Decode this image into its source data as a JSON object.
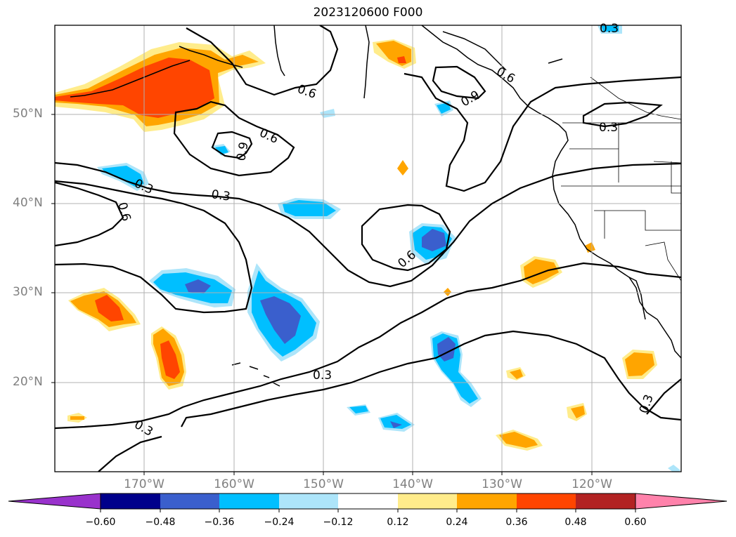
{
  "title": "2023120600 F000",
  "map": {
    "lat_labels": [
      "50°N",
      "40°N",
      "30°N",
      "20°N"
    ],
    "lon_labels": [
      "170°W",
      "160°W",
      "150°W",
      "140°W",
      "130°W",
      "120°W"
    ],
    "contour_labels": [
      "0.6",
      "0.6",
      "0.9",
      "0.6",
      "0.9",
      "0.3",
      "0.3",
      "0.3",
      "0.6",
      "0.6",
      "0.3",
      "0.3",
      "0.3",
      "0.3"
    ],
    "colors": {
      "neg_060": "#9932cc",
      "neg_048": "#00008b",
      "neg_036": "#3a5fcd",
      "neg_024": "#00bfff",
      "neg_012": "#ade5fa",
      "zero": "#ffffff",
      "pos_012": "#ffec8b",
      "pos_024": "#ffa500",
      "pos_036": "#ff4500",
      "pos_048": "#b22222",
      "pos_060": "#ff82ab"
    }
  },
  "colorbar": {
    "ticks": [
      "−0.60",
      "−0.48",
      "−0.36",
      "−0.24",
      "−0.12",
      "0.12",
      "0.24",
      "0.36",
      "0.48",
      "0.60"
    ],
    "colors": [
      "#9932cc",
      "#00008b",
      "#3a5fcd",
      "#00bfff",
      "#ade5fa",
      "#ffffff",
      "#ffec8b",
      "#ffa500",
      "#ff4500",
      "#b22222",
      "#ff82ab"
    ]
  }
}
